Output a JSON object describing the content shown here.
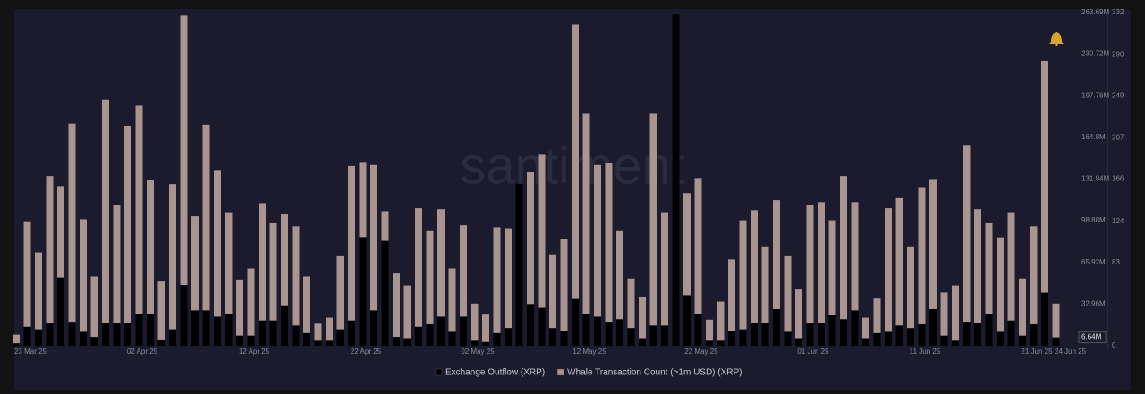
{
  "chart_data": {
    "type": "bar",
    "watermark": "santiment",
    "categories": [
      "23 Mar 25",
      null,
      null,
      null,
      null,
      null,
      null,
      null,
      null,
      null,
      "02 Apr 25",
      null,
      null,
      null,
      null,
      null,
      null,
      null,
      null,
      null,
      "12 Apr 25",
      null,
      null,
      null,
      null,
      null,
      null,
      null,
      null,
      null,
      "22 Apr 25",
      null,
      null,
      null,
      null,
      null,
      null,
      null,
      null,
      null,
      "02 May 25",
      null,
      null,
      null,
      null,
      null,
      null,
      null,
      null,
      null,
      "12 May 25",
      null,
      null,
      null,
      null,
      null,
      null,
      null,
      null,
      null,
      "22 May 25",
      null,
      null,
      null,
      null,
      null,
      null,
      null,
      null,
      null,
      "01 Jun 25",
      null,
      null,
      null,
      null,
      null,
      null,
      null,
      null,
      null,
      "11 Jun 25",
      null,
      null,
      null,
      null,
      null,
      null,
      null,
      null,
      null,
      "21 Jun 25",
      null,
      null,
      "24 Jun 25"
    ],
    "series": [
      {
        "name": "Whale Transaction Count (>1m USD) (XRP)",
        "color": "#a8958f",
        "axis": "y2",
        "values": [
          11,
          124,
          93,
          169,
          159,
          221,
          126,
          69,
          245,
          140,
          219,
          239,
          165,
          64,
          161,
          329,
          129,
          220,
          175,
          133,
          66,
          77,
          142,
          122,
          131,
          119,
          69,
          22,
          28,
          90,
          179,
          183,
          180,
          134,
          72,
          60,
          137,
          115,
          136,
          77,
          120,
          42,
          31,
          118,
          117,
          124,
          173,
          191,
          91,
          106,
          320,
          231,
          180,
          182,
          115,
          67,
          49,
          231,
          133,
          165,
          152,
          167,
          26,
          44,
          86,
          125,
          135,
          99,
          145,
          90,
          56,
          140,
          143,
          125,
          169,
          143,
          28,
          47,
          137,
          147,
          99,
          158,
          166,
          53,
          60,
          200,
          136,
          122,
          108,
          133,
          67,
          119,
          284,
          42
        ]
      },
      {
        "name": "Exchange Outflow (XRP)",
        "color": "#000000",
        "values": [
          2000000.0,
          15000000.0,
          13000000.0,
          18000000.0,
          54000000.0,
          19000000.0,
          11000000.0,
          7000000.0,
          18000000.0,
          18000000.0,
          18000000.0,
          25000000.0,
          25000000.0,
          5000000.0,
          13000000.0,
          48000000.0,
          28000000.0,
          28000000.0,
          23000000.0,
          25000000.0,
          8000000.0,
          8000000.0,
          20000000.0,
          20000000.0,
          32000000.0,
          16000000.0,
          10000000.0,
          4000000.0,
          4000000.0,
          13000000.0,
          20000000.0,
          86000000.0,
          28000000.0,
          83000000.0,
          7000000.0,
          6000000.0,
          15000000.0,
          17000000.0,
          23000000.0,
          11000000.0,
          23000000.0,
          4000000.0,
          3000000.0,
          10000000.0,
          14000000.0,
          128000000.0,
          33000000.0,
          30000000.0,
          14000000.0,
          12000000.0,
          37000000.0,
          25000000.0,
          23000000.0,
          19000000.0,
          21000000.0,
          14000000.0,
          6000000.0,
          16000000.0,
          16000000.0,
          262000000.0,
          40000000.0,
          25000000.0,
          4000000.0,
          4000000.0,
          12000000.0,
          13000000.0,
          18000000.0,
          18000000.0,
          29000000.0,
          11000000.0,
          6000000.0,
          18000000.0,
          18000000.0,
          24000000.0,
          21000000.0,
          28000000.0,
          6000000.0,
          10000000.0,
          11000000.0,
          16000000.0,
          14000000.0,
          17000000.0,
          29000000.0,
          8000000.0,
          4000000.0,
          19000000.0,
          18000000.0,
          25000000.0,
          11000000.0,
          20000000.0,
          8000000.0,
          17000000.0,
          42000000.0,
          6640000.0
        ],
        "value_labels": [
          null,
          null,
          null,
          null,
          null,
          null,
          null,
          null,
          null,
          null,
          null,
          null,
          null,
          null,
          null,
          null,
          null,
          null,
          null,
          null,
          null,
          null,
          null,
          null,
          null,
          null,
          null,
          null,
          null,
          null,
          null,
          null,
          null,
          null,
          null,
          null,
          null,
          null,
          null,
          null,
          null,
          null,
          null,
          null,
          null,
          null,
          null,
          null,
          null,
          null,
          null,
          null,
          null,
          null,
          null,
          null,
          null,
          null,
          null,
          null,
          null,
          null,
          null,
          null,
          null,
          null,
          null,
          null,
          null,
          null,
          null,
          null,
          null,
          null,
          null,
          null,
          null,
          null,
          null,
          null,
          null,
          null,
          null,
          null,
          null,
          null,
          null,
          null,
          null,
          null,
          null,
          null,
          null,
          "6.64M"
        ]
      }
    ],
    "ylim": [
      0,
      263690000
    ],
    "yticks": [
      {
        "value": 32960000,
        "label": "32.96M"
      },
      {
        "value": 65920000,
        "label": "65.92M"
      },
      {
        "value": 98880000,
        "label": "98.88M"
      },
      {
        "value": 131840000,
        "label": "131.84M"
      },
      {
        "value": 164800000,
        "label": "164.8M"
      },
      {
        "value": 197760000,
        "label": "197.76M"
      },
      {
        "value": 230720000,
        "label": "230.72M"
      },
      {
        "value": 263690000,
        "label": "263.69M"
      }
    ],
    "y2lim": [
      0,
      332
    ],
    "y2ticks": [
      0,
      83,
      124,
      166,
      207,
      249,
      290,
      332
    ],
    "legend": "bottom"
  }
}
